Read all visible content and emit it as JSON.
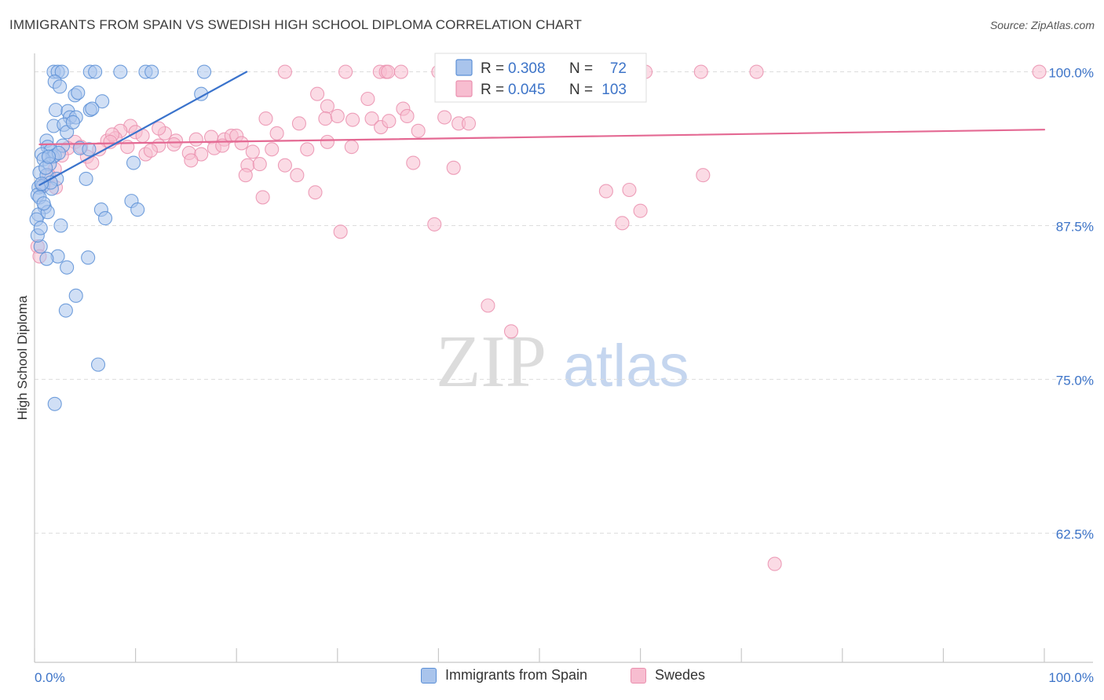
{
  "title": "IMMIGRANTS FROM SPAIN VS SWEDISH HIGH SCHOOL DIPLOMA CORRELATION CHART",
  "source": "Source: ZipAtlas.com",
  "watermark": {
    "zip": "ZIP",
    "atlas": "atlas"
  },
  "colors": {
    "blue_fill": "#a9c4ec",
    "blue_stroke": "#5b8fd6",
    "blue_line": "#3a73cc",
    "pink_fill": "#f7bdd0",
    "pink_stroke": "#ea8fae",
    "pink_line": "#e46993",
    "accent_text": "#3d74c8",
    "grid": "#dddddd"
  },
  "stats_box": {
    "rows": [
      {
        "series": "blue",
        "r_label": "R =",
        "r_value": "0.308",
        "n_label": "N =",
        "n_value": "72"
      },
      {
        "series": "pink",
        "r_label": "R =",
        "r_value": "0.045",
        "n_label": "N =",
        "n_value": "103"
      }
    ]
  },
  "chart_data": {
    "type": "scatter",
    "title": "IMMIGRANTS FROM SPAIN VS SWEDISH HIGH SCHOOL DIPLOMA CORRELATION CHART",
    "xlabel": "",
    "ylabel": "High School Diploma",
    "xlim": [
      0,
      100
    ],
    "ylim": [
      52,
      101.5
    ],
    "x_tick_labels": [
      "0.0%",
      "100.0%"
    ],
    "y_ticks": [
      100,
      87.5,
      75,
      62.5
    ],
    "y_tick_labels": [
      "100.0%",
      "87.5%",
      "75.0%",
      "62.5%"
    ],
    "legend": [
      "Immigrants from Spain",
      "Swedes"
    ],
    "series": [
      {
        "name": "Immigrants from Spain",
        "color": "#5b8fd6",
        "r": 0.308,
        "n": 72,
        "trend": {
          "x": [
            0.5,
            21
          ],
          "y": [
            90.8,
            100.0
          ]
        },
        "points": [
          [
            1.9,
            100
          ],
          [
            2.3,
            100
          ],
          [
            2.7,
            100
          ],
          [
            5.5,
            100
          ],
          [
            6.0,
            100
          ],
          [
            8.5,
            100
          ],
          [
            11.0,
            100
          ],
          [
            11.6,
            100
          ],
          [
            16.8,
            100
          ],
          [
            2.0,
            99.2
          ],
          [
            2.5,
            98.8
          ],
          [
            4.0,
            98.1
          ],
          [
            4.3,
            98.3
          ],
          [
            16.5,
            98.2
          ],
          [
            6.7,
            97.6
          ],
          [
            2.1,
            96.9
          ],
          [
            3.3,
            96.8
          ],
          [
            5.5,
            96.9
          ],
          [
            5.7,
            97.0
          ],
          [
            3.5,
            96.3
          ],
          [
            4.1,
            96.3
          ],
          [
            1.9,
            95.6
          ],
          [
            2.9,
            95.7
          ],
          [
            3.2,
            95.1
          ],
          [
            1.2,
            94.4
          ],
          [
            1.3,
            93.9
          ],
          [
            1.6,
            93.6
          ],
          [
            4.5,
            93.8
          ],
          [
            5.4,
            93.7
          ],
          [
            0.7,
            93.3
          ],
          [
            1.8,
            93.1
          ],
          [
            2.0,
            93.2
          ],
          [
            0.9,
            92.9
          ],
          [
            1.5,
            92.5
          ],
          [
            9.8,
            92.6
          ],
          [
            0.5,
            91.8
          ],
          [
            1.2,
            91.6
          ],
          [
            2.2,
            91.3
          ],
          [
            5.1,
            91.3
          ],
          [
            0.4,
            90.6
          ],
          [
            0.8,
            90.7
          ],
          [
            1.7,
            90.5
          ],
          [
            0.3,
            90.0
          ],
          [
            0.5,
            89.8
          ],
          [
            9.6,
            89.5
          ],
          [
            1.0,
            89.0
          ],
          [
            6.6,
            88.8
          ],
          [
            10.2,
            88.8
          ],
          [
            0.4,
            88.4
          ],
          [
            1.3,
            88.6
          ],
          [
            7.0,
            88.1
          ],
          [
            2.6,
            87.5
          ],
          [
            0.2,
            88.0
          ],
          [
            0.6,
            85.8
          ],
          [
            2.3,
            85.0
          ],
          [
            5.3,
            84.9
          ],
          [
            1.2,
            84.8
          ],
          [
            3.2,
            84.1
          ],
          [
            4.1,
            81.8
          ],
          [
            3.1,
            80.6
          ],
          [
            6.3,
            76.2
          ],
          [
            2.0,
            73.0
          ],
          [
            0.3,
            86.7
          ],
          [
            1.1,
            92.2
          ],
          [
            2.8,
            94.0
          ],
          [
            0.6,
            87.3
          ],
          [
            3.8,
            95.9
          ],
          [
            1.6,
            91.0
          ],
          [
            0.9,
            89.3
          ],
          [
            2.4,
            93.4
          ],
          [
            0.7,
            90.9
          ],
          [
            1.4,
            93.1
          ]
        ]
      },
      {
        "name": "Swedes",
        "color": "#ea8fae",
        "r": 0.045,
        "n": 103,
        "trend": {
          "x": [
            0.5,
            100
          ],
          "y": [
            94.1,
            95.3
          ]
        },
        "points": [
          [
            24.8,
            100
          ],
          [
            30.8,
            100
          ],
          [
            34.2,
            100
          ],
          [
            34.8,
            100
          ],
          [
            35.0,
            100
          ],
          [
            36.3,
            100
          ],
          [
            40.0,
            100
          ],
          [
            40.5,
            100
          ],
          [
            41.0,
            100
          ],
          [
            42.5,
            100
          ],
          [
            44.5,
            100
          ],
          [
            46.0,
            100
          ],
          [
            48.0,
            100
          ],
          [
            50.5,
            100
          ],
          [
            53.0,
            100
          ],
          [
            55.0,
            100
          ],
          [
            58.5,
            100
          ],
          [
            60.5,
            100
          ],
          [
            66.0,
            100
          ],
          [
            71.5,
            100
          ],
          [
            99.5,
            100
          ],
          [
            28.0,
            98.2
          ],
          [
            33.0,
            97.8
          ],
          [
            29.0,
            97.2
          ],
          [
            28.8,
            96.2
          ],
          [
            30.0,
            96.4
          ],
          [
            31.5,
            96.1
          ],
          [
            33.4,
            96.2
          ],
          [
            36.5,
            97.0
          ],
          [
            36.9,
            96.4
          ],
          [
            40.6,
            96.3
          ],
          [
            22.9,
            96.2
          ],
          [
            26.2,
            95.8
          ],
          [
            34.3,
            95.5
          ],
          [
            42.0,
            95.8
          ],
          [
            9.5,
            95.6
          ],
          [
            10.0,
            95.1
          ],
          [
            12.9,
            95.0
          ],
          [
            8.5,
            95.2
          ],
          [
            7.2,
            94.4
          ],
          [
            8.0,
            94.6
          ],
          [
            7.7,
            94.9
          ],
          [
            10.7,
            94.8
          ],
          [
            14.0,
            94.4
          ],
          [
            17.5,
            94.7
          ],
          [
            18.8,
            94.5
          ],
          [
            19.5,
            94.8
          ],
          [
            20.0,
            94.8
          ],
          [
            4.0,
            94.3
          ],
          [
            3.3,
            93.8
          ],
          [
            5.2,
            93.1
          ],
          [
            6.4,
            93.7
          ],
          [
            11.0,
            93.3
          ],
          [
            12.3,
            94.0
          ],
          [
            15.3,
            93.4
          ],
          [
            16.5,
            93.3
          ],
          [
            17.8,
            93.8
          ],
          [
            18.6,
            94.0
          ],
          [
            21.6,
            93.5
          ],
          [
            23.5,
            93.7
          ],
          [
            27.0,
            93.7
          ],
          [
            31.4,
            93.9
          ],
          [
            2.7,
            93.2
          ],
          [
            2.0,
            92.1
          ],
          [
            1.4,
            91.6
          ],
          [
            0.9,
            90.8
          ],
          [
            2.1,
            90.6
          ],
          [
            5.7,
            92.6
          ],
          [
            11.5,
            93.6
          ],
          [
            15.5,
            92.8
          ],
          [
            21.1,
            92.4
          ],
          [
            22.3,
            92.5
          ],
          [
            24.8,
            92.4
          ],
          [
            26.0,
            91.6
          ],
          [
            20.9,
            91.6
          ],
          [
            37.5,
            92.6
          ],
          [
            41.5,
            92.2
          ],
          [
            22.6,
            89.8
          ],
          [
            27.8,
            90.2
          ],
          [
            56.6,
            90.3
          ],
          [
            58.9,
            90.4
          ],
          [
            66.2,
            91.6
          ],
          [
            58.2,
            87.7
          ],
          [
            60.0,
            88.7
          ],
          [
            39.6,
            87.6
          ],
          [
            30.3,
            87.0
          ],
          [
            0.3,
            85.8
          ],
          [
            0.5,
            85.0
          ],
          [
            44.9,
            81.0
          ],
          [
            47.2,
            78.9
          ],
          [
            73.3,
            60.0
          ],
          [
            12.3,
            95.4
          ],
          [
            7.5,
            94.3
          ],
          [
            13.8,
            94.1
          ],
          [
            24.0,
            95.0
          ],
          [
            29.0,
            94.3
          ],
          [
            35.1,
            96.0
          ],
          [
            9.2,
            93.9
          ],
          [
            16.0,
            94.5
          ],
          [
            38.0,
            95.2
          ],
          [
            20.5,
            94.2
          ],
          [
            4.6,
            93.9
          ],
          [
            43.0,
            95.8
          ]
        ]
      }
    ]
  }
}
